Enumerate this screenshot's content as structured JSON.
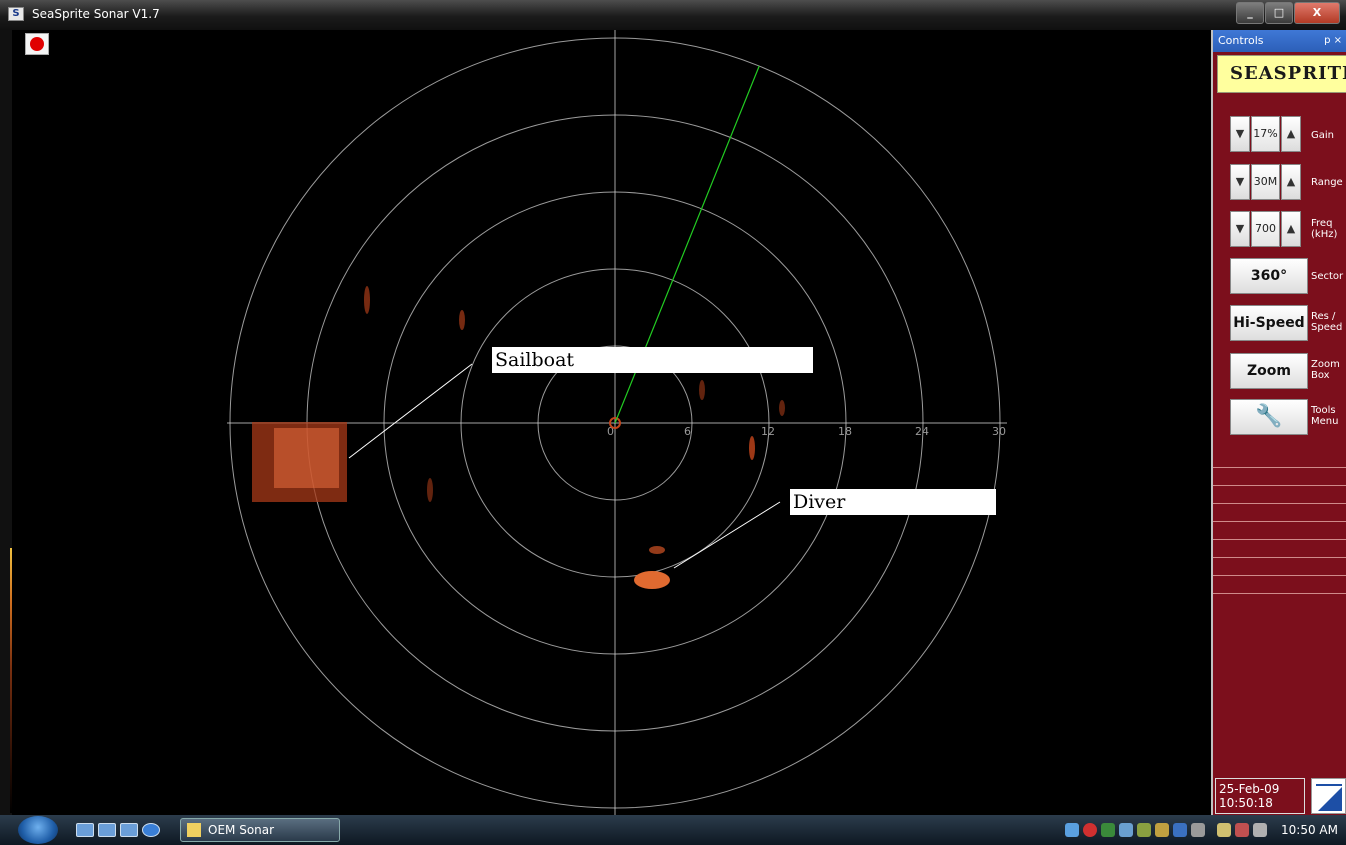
{
  "window": {
    "title": "SeaSprite Sonar V1.7",
    "controls": [
      "_",
      "□",
      "X"
    ]
  },
  "sonar": {
    "range_labels": [
      "0",
      "6",
      "12",
      "18",
      "24",
      "30"
    ],
    "beam_heading_deg": 22,
    "rings": 5,
    "echo_color": "#d04a1e"
  },
  "annotations": {
    "sailboat": "Sailboat",
    "diver": "Diver"
  },
  "controls_panel": {
    "header": "Controls",
    "pin": "p ×",
    "logo": "SEASPRITE",
    "gain": {
      "value": "17%",
      "label": "Gain"
    },
    "range": {
      "value": "30M",
      "label": "Range"
    },
    "freq": {
      "value": "700",
      "label1": "Freq",
      "label2": "(kHz)"
    },
    "sector": {
      "value": "360°",
      "label": "Sector"
    },
    "speed": {
      "value": "Hi-Speed",
      "label1": "Res /",
      "label2": "Speed"
    },
    "zoom": {
      "value": "Zoom",
      "label1": "Zoom",
      "label2": "Box"
    },
    "tools": {
      "label1": "Tools",
      "label2": "Menu"
    },
    "date": "25-Feb-09",
    "time": "10:50:18"
  },
  "taskbar": {
    "app_label": "OEM Sonar",
    "clock": "10:50 AM"
  },
  "colors": {
    "panel": "#7c0f1c",
    "beam": "#22cc22",
    "rings": "#cfcfcf"
  }
}
